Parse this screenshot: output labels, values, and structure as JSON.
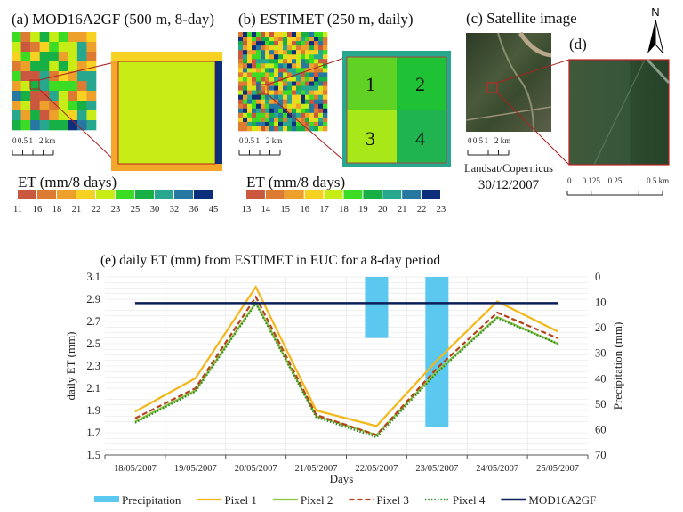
{
  "panels": {
    "a": {
      "title": "(a) MOD16A2GF (500 m, 8-day)",
      "scale_labels": [
        "0",
        "0.5",
        "1",
        "2 km"
      ],
      "legend_title": "ET (mm/8 days)",
      "legend_ticks": [
        "11",
        "16",
        "18",
        "21",
        "22",
        "23",
        "25",
        "30",
        "32",
        "36",
        "45"
      ]
    },
    "b": {
      "title": "(b) ESTIMET (250 m, daily)",
      "scale_labels": [
        "0",
        "0.5",
        "1",
        "2 km"
      ],
      "legend_title": "ET (mm/8 days)",
      "legend_ticks": [
        "13",
        "14",
        "15",
        "16",
        "17",
        "18",
        "19",
        "20",
        "21",
        "22",
        "23"
      ],
      "pixel_labels": [
        "1",
        "2",
        "3",
        "4"
      ]
    },
    "c": {
      "title": "(c) Satellite image",
      "scale_labels": [
        "0",
        "0.5",
        "1",
        "2 km"
      ],
      "source": "Landsat/Copernicus",
      "date": "30/12/2007"
    },
    "d": {
      "title": "(d)",
      "scale_labels": [
        "0",
        "0.125",
        "0.25",
        "0.5 km"
      ]
    },
    "north": "N"
  },
  "colors": {
    "ramp": [
      "#c9583f",
      "#de7b33",
      "#eda12b",
      "#f8d223",
      "#c7ec16",
      "#3ddc24",
      "#17b045",
      "#27a78d",
      "#2678a0",
      "#0d2f7b"
    ],
    "precip": "#5bc8f0",
    "pixel1": "#f3b71a",
    "pixel2": "#8cc43f",
    "pixel3": "#b5421d",
    "pixel4": "#2e8a2a",
    "mod": "#0b1f5a"
  },
  "chart_data": {
    "type": "line",
    "title": "(e) daily ET (mm) from ESTIMET in EUC for a 8-day period",
    "xlabel": "Days",
    "ylabel": "daily ET (mm)",
    "y2label": "Precipitation (mm)",
    "categories": [
      "18/05/2007",
      "19/05/2007",
      "20/05/2007",
      "21/05/2007",
      "22/05/2007",
      "23/05/2007",
      "24/05/2007",
      "25/05/2007"
    ],
    "ylim": [
      1.5,
      3.1
    ],
    "yticks": [
      "1.5",
      "1.7",
      "1.9",
      "2.1",
      "2.3",
      "2.5",
      "2.7",
      "2.9",
      "3.1"
    ],
    "y2lim": [
      0,
      70
    ],
    "y2_inverted": true,
    "y2ticks": [
      "0",
      "10",
      "20",
      "30",
      "40",
      "50",
      "60",
      "70"
    ],
    "grid": true,
    "legend_position": "bottom",
    "series": [
      {
        "name": "Precipitation",
        "type": "bar",
        "axis": "right",
        "values": [
          0,
          0,
          0,
          0,
          24,
          59,
          0,
          0
        ]
      },
      {
        "name": "Pixel 1",
        "values": [
          1.89,
          2.19,
          3.01,
          1.9,
          1.76,
          2.35,
          2.88,
          2.61
        ]
      },
      {
        "name": "Pixel 2",
        "values": [
          1.8,
          2.08,
          2.87,
          1.85,
          1.68,
          2.25,
          2.74,
          2.5
        ]
      },
      {
        "name": "Pixel 3",
        "values": [
          1.83,
          2.1,
          2.92,
          1.86,
          1.68,
          2.28,
          2.78,
          2.55
        ]
      },
      {
        "name": "Pixel 4",
        "values": [
          1.79,
          2.07,
          2.86,
          1.84,
          1.66,
          2.24,
          2.73,
          2.5
        ]
      },
      {
        "name": "MOD16A2GF",
        "values": [
          2.865,
          2.865,
          2.865,
          2.865,
          2.865,
          2.865,
          2.865,
          2.865
        ]
      }
    ]
  }
}
